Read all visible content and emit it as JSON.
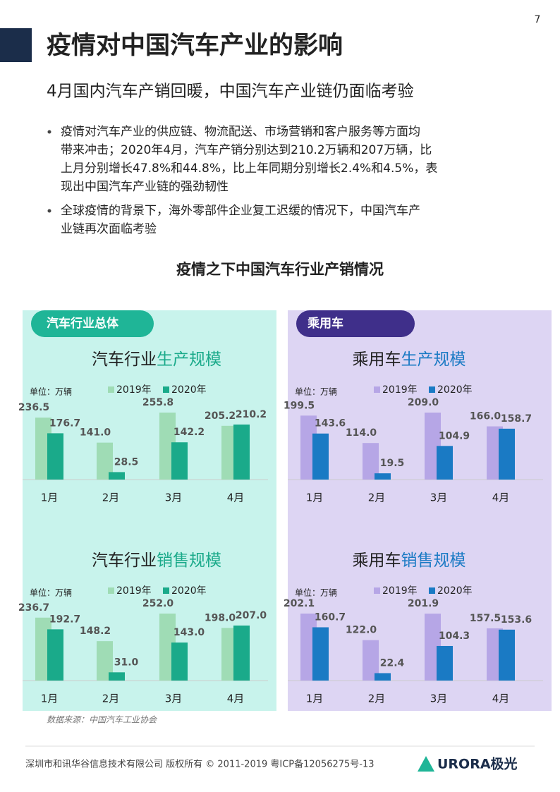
{
  "page_number": "7",
  "header": {
    "title": "疫情对中国汽车产业的影响",
    "subtitle": "4月国内汽车产销回暖，中国汽车产业链仍面临考验"
  },
  "bullets": [
    [
      "疫情对汽车产业的供应链、物流配送、市场营销和客户服务等方面均",
      "带来冲击；2020年4月，汽车产销分别达到210.2万辆和207万辆，比",
      "上月分别增长47.8%和44.8%，比上年同期分别增长2.4%和4.5%，表",
      "现出中国汽车产业链的强劲韧性"
    ],
    [
      "全球疫情的背景下，海外零部件企业复工迟缓的情况下，中国汽车产",
      "业链再次面临考验"
    ]
  ],
  "section_title": "疫情之下中国汽车行业产销情况",
  "panels": [
    {
      "tag": "汽车行业总体"
    },
    {
      "tag": "乘用车"
    }
  ],
  "chart_data": [
    {
      "type": "bar",
      "title_prefix": "汽车行业",
      "title_highlight": "生产规模",
      "unit": "单位：万辆",
      "categories": [
        "1月",
        "2月",
        "3月",
        "4月"
      ],
      "series": [
        {
          "name": "2019年",
          "color": "#9fdcb5",
          "values": [
            236.5,
            141.0,
            255.8,
            205.2
          ],
          "value_labels": [
            "236.5",
            "141.0",
            "255.8",
            "205.2"
          ]
        },
        {
          "name": "2020年",
          "color": "#1aaa8a",
          "values": [
            176.7,
            28.5,
            142.2,
            210.2
          ],
          "value_labels": [
            "176.7",
            "28.5",
            "142.2",
            "210.2"
          ]
        }
      ]
    },
    {
      "type": "bar",
      "title_prefix": "乘用车",
      "title_highlight": "生产规模",
      "unit": "单位：万辆",
      "categories": [
        "1月",
        "2月",
        "3月",
        "4月"
      ],
      "series": [
        {
          "name": "2019年",
          "color": "#b6a6e6",
          "values": [
            199.5,
            114.0,
            209.0,
            166.0
          ],
          "value_labels": [
            "199.5",
            "114.0",
            "209.0",
            "166.0"
          ]
        },
        {
          "name": "2020年",
          "color": "#1a7ac4",
          "values": [
            143.6,
            19.5,
            104.9,
            158.7
          ],
          "value_labels": [
            "143.6",
            "19.5",
            "104.9",
            "158.7"
          ]
        }
      ]
    },
    {
      "type": "bar",
      "title_prefix": "汽车行业",
      "title_highlight": "销售规模",
      "unit": "单位：万辆",
      "categories": [
        "1月",
        "2月",
        "3月",
        "4月"
      ],
      "series": [
        {
          "name": "2019年",
          "color": "#9fdcb5",
          "values": [
            236.7,
            148.2,
            252.0,
            198.0
          ],
          "value_labels": [
            "236.7",
            "148.2",
            "252.0",
            "198.0"
          ]
        },
        {
          "name": "2020年",
          "color": "#1aaa8a",
          "values": [
            192.7,
            31.0,
            143.0,
            207.0
          ],
          "value_labels": [
            "192.7",
            "31.0",
            "143.0",
            "207.0"
          ]
        }
      ]
    },
    {
      "type": "bar",
      "title_prefix": "乘用车",
      "title_highlight": "销售规模",
      "unit": "单位：万辆",
      "categories": [
        "1月",
        "2月",
        "3月",
        "4月"
      ],
      "series": [
        {
          "name": "2019年",
          "color": "#b6a6e6",
          "values": [
            202.1,
            122.0,
            201.9,
            157.5
          ],
          "value_labels": [
            "202.1",
            "122.0",
            "201.9",
            "157.5"
          ]
        },
        {
          "name": "2020年",
          "color": "#1a7ac4",
          "values": [
            160.7,
            22.4,
            104.3,
            153.6
          ],
          "value_labels": [
            "160.7",
            "22.4",
            "104.3",
            "153.6"
          ]
        }
      ]
    }
  ],
  "source": "数据来源：中国汽车工业协会",
  "footer": {
    "copyright": "深圳市和讯华谷信息技术有限公司 版权所有 © 2011-2019 粤ICP备12056275号-13",
    "logo": "URORA极光"
  }
}
